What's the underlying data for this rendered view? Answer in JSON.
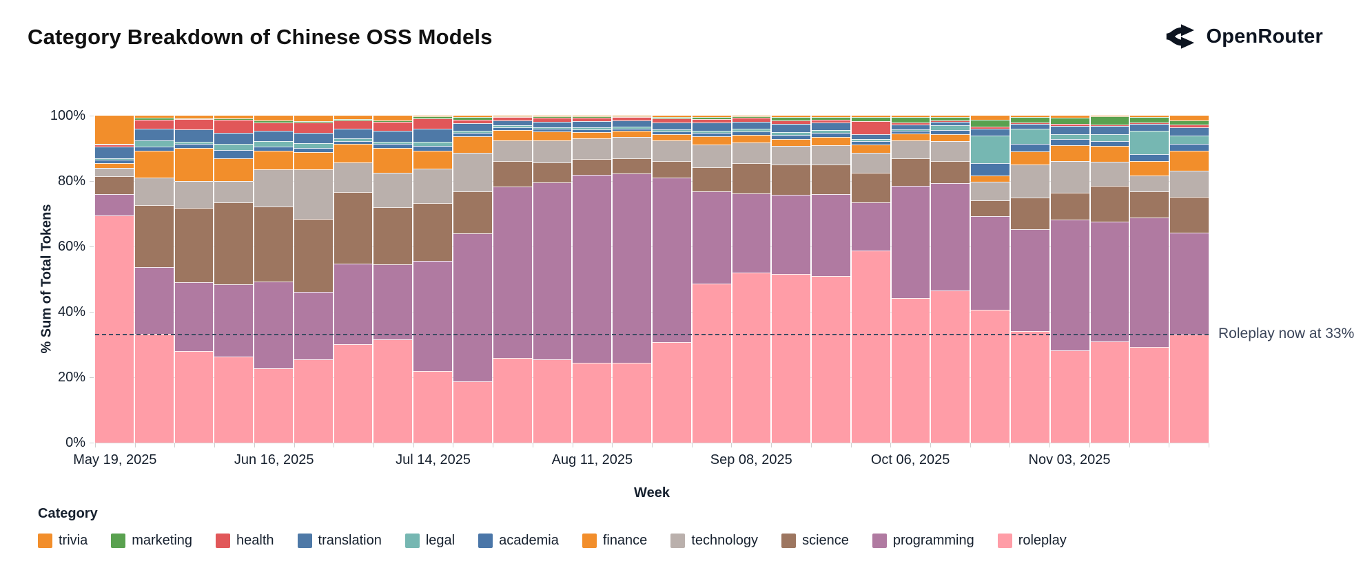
{
  "header": {
    "title": "Category Breakdown of Chinese OSS Models",
    "brand": "OpenRouter"
  },
  "chart": {
    "y_axis": {
      "title": "% Sum of Total Tokens",
      "ticks": [
        "0%",
        "20%",
        "40%",
        "60%",
        "80%",
        "100%"
      ]
    },
    "x_axis": {
      "title": "Week",
      "visible_tick_labels": [
        {
          "bar_index": 0,
          "label": "May 19, 2025"
        },
        {
          "bar_index": 4,
          "label": "Jun 16, 2025"
        },
        {
          "bar_index": 8,
          "label": "Jul 14, 2025"
        },
        {
          "bar_index": 12,
          "label": "Aug 11, 2025"
        },
        {
          "bar_index": 16,
          "label": "Sep 08, 2025"
        },
        {
          "bar_index": 20,
          "label": "Oct 06, 2025"
        },
        {
          "bar_index": 24,
          "label": "Nov 03, 2025"
        }
      ]
    },
    "annotation": {
      "text": "Roleplay now at 33%",
      "value_percent": 33
    },
    "legend": {
      "title": "Category",
      "items": [
        "trivia",
        "marketing",
        "health",
        "translation",
        "legal",
        "academia",
        "finance",
        "technology",
        "science",
        "programming",
        "roleplay"
      ]
    },
    "chart_data": {
      "type": "bar",
      "stacked": true,
      "normalized_percent": true,
      "title": "Category Breakdown of Chinese OSS Models",
      "xlabel": "Week",
      "ylabel": "% Sum of Total Tokens",
      "ylim": [
        0,
        100
      ],
      "grid": true,
      "legend_position": "bottom",
      "reference_line": {
        "y": 33,
        "style": "dashed",
        "color": "#3e4c63",
        "label": "Roleplay now at 33%"
      },
      "x": [
        "May 19, 2025",
        "May 26, 2025",
        "Jun 02, 2025",
        "Jun 09, 2025",
        "Jun 16, 2025",
        "Jun 23, 2025",
        "Jun 30, 2025",
        "Jul 07, 2025",
        "Jul 14, 2025",
        "Jul 21, 2025",
        "Jul 28, 2025",
        "Aug 04, 2025",
        "Aug 11, 2025",
        "Aug 18, 2025",
        "Aug 25, 2025",
        "Sep 01, 2025",
        "Sep 08, 2025",
        "Sep 15, 2025",
        "Sep 22, 2025",
        "Sep 29, 2025",
        "Oct 06, 2025",
        "Oct 13, 2025",
        "Oct 20, 2025",
        "Oct 27, 2025",
        "Nov 03, 2025",
        "Nov 10, 2025",
        "Nov 17, 2025",
        "Nov 24, 2025"
      ],
      "series": [
        {
          "name": "trivia",
          "color": "#F28E2B",
          "values": [
            8.6,
            0.7,
            0.8,
            0.8,
            1.5,
            1.7,
            1.1,
            1.5,
            0.3,
            0.5,
            0.2,
            0.2,
            0.2,
            0.2,
            0.4,
            0.4,
            0.3,
            0.5,
            0.4,
            0.5,
            0.5,
            0.4,
            1.3,
            0.5,
            0.7,
            0.3,
            0.5,
            1.5
          ]
        },
        {
          "name": "marketing",
          "color": "#59A14F",
          "values": [
            0.2,
            0.5,
            0.3,
            0.4,
            0.6,
            0.5,
            0.4,
            0.4,
            0.5,
            0.7,
            0.3,
            0.4,
            0.4,
            0.3,
            0.5,
            0.6,
            0.4,
            1.0,
            0.8,
            1.1,
            1.6,
            1.0,
            2.0,
            1.5,
            1.8,
            2.4,
            1.6,
            1.2
          ]
        },
        {
          "name": "health",
          "color": "#E15759",
          "values": [
            0.7,
            2.8,
            3.2,
            4.0,
            2.6,
            3.1,
            2.6,
            2.8,
            3.2,
            1.2,
            1.0,
            1.2,
            1.0,
            1.0,
            1.2,
            1.2,
            1.1,
            1.0,
            1.0,
            4.0,
            0.6,
            0.4,
            0.8,
            0.5,
            0.6,
            0.5,
            0.4,
            0.8
          ]
        },
        {
          "name": "translation",
          "color": "#4E79A7",
          "values": [
            3.5,
            3.5,
            3.8,
            3.5,
            3.1,
            3.2,
            2.8,
            3.2,
            4.0,
            2.2,
            1.5,
            1.8,
            2.0,
            1.9,
            2.2,
            2.4,
            2.2,
            2.5,
            2.2,
            1.6,
            1.5,
            1.2,
            2.0,
            1.5,
            2.5,
            2.4,
            2.2,
            2.6
          ]
        },
        {
          "name": "legal",
          "color": "#76B7B2",
          "values": [
            0.5,
            2.0,
            0.5,
            1.8,
            1.6,
            1.4,
            0.8,
            0.8,
            1.3,
            0.7,
            0.5,
            0.5,
            0.6,
            0.5,
            0.6,
            0.7,
            0.8,
            0.9,
            0.9,
            0.6,
            0.5,
            1.5,
            8.5,
            4.7,
            1.5,
            2.2,
            7.0,
            2.5
          ]
        },
        {
          "name": "academia",
          "color": "#4A76A8",
          "values": [
            1.0,
            1.3,
            1.2,
            2.5,
            1.4,
            1.3,
            1.0,
            1.2,
            1.5,
            1.0,
            1.0,
            0.8,
            0.8,
            0.7,
            0.8,
            1.0,
            1.1,
            1.3,
            1.2,
            1.1,
            0.8,
            1.2,
            3.7,
            2.2,
            2.0,
            1.5,
            2.2,
            2.2
          ]
        },
        {
          "name": "finance",
          "color": "#F28E2B",
          "values": [
            1.5,
            8.2,
            10.2,
            7.0,
            5.6,
            5.3,
            5.6,
            7.6,
            5.5,
            5.0,
            3.0,
            2.7,
            2.0,
            1.9,
            1.9,
            2.5,
            2.4,
            2.1,
            2.5,
            2.4,
            2.0,
            2.2,
            1.9,
            4.1,
            4.8,
            4.8,
            4.4,
            6.0
          ]
        },
        {
          "name": "technology",
          "color": "#BAB0AC",
          "values": [
            2.5,
            8.4,
            8.2,
            6.5,
            11.3,
            15.0,
            9.0,
            10.6,
            10.5,
            11.9,
            6.4,
            6.7,
            6.3,
            6.5,
            6.3,
            6.9,
            6.3,
            5.7,
            6.0,
            6.2,
            5.5,
            6.0,
            5.6,
            10.0,
            9.6,
            7.4,
            4.8,
            8.0
          ]
        },
        {
          "name": "science",
          "color": "#9D7660",
          "values": [
            5.5,
            19.0,
            22.8,
            25.1,
            23.0,
            22.3,
            21.9,
            17.4,
            17.7,
            12.9,
            7.8,
            6.2,
            4.9,
            4.6,
            5.0,
            7.5,
            9.1,
            9.3,
            9.0,
            9.0,
            8.5,
            6.7,
            5.0,
            9.7,
            8.2,
            11.0,
            8.1,
            11.0
          ]
        },
        {
          "name": "programming",
          "color": "#B07AA1",
          "values": [
            6.5,
            20.4,
            21.0,
            22.0,
            26.5,
            20.7,
            24.8,
            23.0,
            33.7,
            45.2,
            52.5,
            54.0,
            57.3,
            58.0,
            50.3,
            28.2,
            24.3,
            24.1,
            25.0,
            14.7,
            34.3,
            32.8,
            28.6,
            31.3,
            40.1,
            36.5,
            39.5,
            31.2
          ]
        },
        {
          "name": "roleplay",
          "color": "#FF9DA7",
          "values": [
            69.5,
            33.2,
            28.0,
            26.4,
            22.8,
            25.5,
            30.0,
            31.5,
            21.8,
            18.7,
            25.8,
            25.5,
            24.5,
            24.4,
            30.8,
            48.6,
            52.0,
            51.6,
            51.0,
            58.8,
            44.2,
            46.6,
            40.6,
            34.0,
            28.2,
            31.0,
            29.3,
            33.0
          ]
        }
      ]
    }
  }
}
